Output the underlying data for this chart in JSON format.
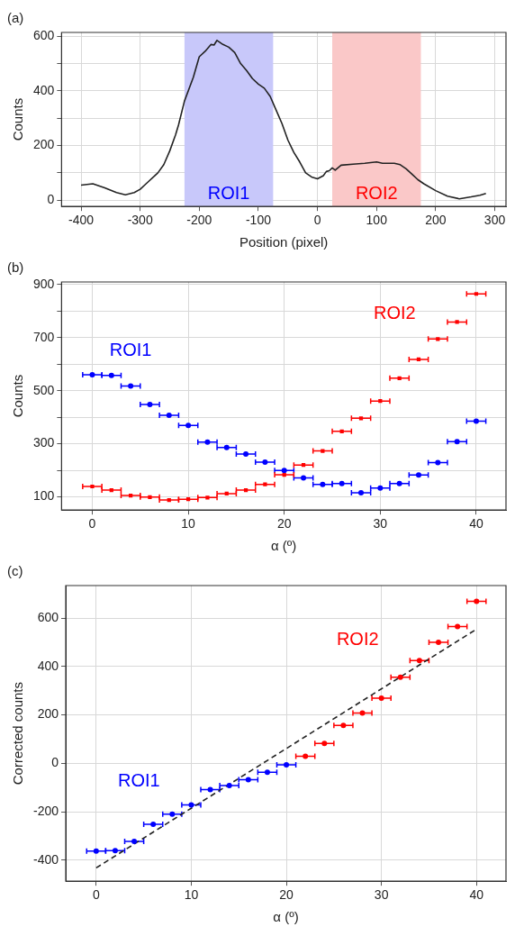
{
  "chart_data": [
    {
      "type": "line",
      "title": "(a)",
      "xlabel": "Position (pixel)",
      "ylabel": "Counts",
      "xlim": [
        -433,
        319
      ],
      "ylim": [
        -23,
        614
      ],
      "xticks": [
        -400,
        -300,
        -200,
        -100,
        0,
        100,
        200,
        300
      ],
      "yticks": [
        0,
        {
          "value": 100,
          "label": null
        },
        200,
        {
          "value": 300,
          "label": null
        },
        400,
        {
          "value": 500,
          "label": null
        },
        600
      ],
      "grid": true,
      "legend": false,
      "marker": "none",
      "bands": [
        {
          "axis": "x",
          "from": -225,
          "to": -75,
          "label": "ROI1",
          "color": "#c8c8fa"
        },
        {
          "axis": "x",
          "from": 25,
          "to": 175,
          "label": "ROI2",
          "color": "#fac8c8"
        }
      ],
      "series": [
        {
          "color": "#222222",
          "x": [
            -400,
            -380,
            -360,
            -340,
            -325,
            -310,
            -300,
            -290,
            -270,
            -260,
            -250,
            -240,
            -235,
            -225,
            -210,
            -200,
            -190,
            -180,
            -175,
            -170,
            -160,
            -150,
            -140,
            -130,
            -120,
            -110,
            -100,
            -90,
            -80,
            -70,
            -60,
            -50,
            -40,
            -30,
            -20,
            -10,
            0,
            10,
            15,
            20,
            25,
            30,
            40,
            60,
            80,
            100,
            110,
            130,
            140,
            150,
            160,
            170,
            180,
            200,
            220,
            240,
            260,
            275,
            285
          ],
          "values": [
            55,
            60,
            45,
            28,
            20,
            28,
            40,
            60,
            100,
            130,
            180,
            240,
            276,
            363,
            450,
            525,
            545,
            570,
            568,
            585,
            570,
            560,
            540,
            500,
            475,
            445,
            425,
            410,
            380,
            330,
            280,
            220,
            175,
            140,
            100,
            85,
            78,
            90,
            105,
            108,
            118,
            110,
            128,
            132,
            135,
            140,
            135,
            135,
            130,
            115,
            95,
            75,
            60,
            35,
            15,
            5,
            12,
            18,
            25
          ]
        }
      ]
    },
    {
      "type": "scatter",
      "title": "(b)",
      "xlabel": "α (º)",
      "ylabel": "Counts",
      "xlim": [
        -3.2,
        43.1
      ],
      "ylim": [
        50,
        910
      ],
      "xticks": [
        0,
        10,
        20,
        30,
        40
      ],
      "yticks": [
        100,
        {
          "value": 200,
          "label": null
        },
        300,
        {
          "value": 400,
          "label": null
        },
        500,
        {
          "value": 600,
          "label": null
        },
        700,
        {
          "value": 800,
          "label": null
        },
        900
      ],
      "grid": true,
      "legend": false,
      "x": [
        0,
        2,
        4,
        6,
        8,
        10,
        12,
        14,
        16,
        18,
        20,
        22,
        24,
        26,
        28,
        30,
        32,
        34,
        36,
        38,
        40
      ],
      "series": [
        {
          "name": "ROI1",
          "color": "#0000ff",
          "marker": "circle",
          "values": [
            560,
            558,
            518,
            448,
            407,
            369,
            306,
            286,
            261,
            231,
            199,
            171,
            147,
            150,
            115,
            133,
            150,
            182,
            229,
            308,
            385
          ],
          "xerrors": [
            1,
            1,
            1,
            1,
            1,
            1,
            1,
            1,
            1,
            1,
            1,
            1,
            1,
            1,
            1,
            1,
            1,
            1,
            1,
            1,
            1
          ]
        },
        {
          "name": "ROI2",
          "color": "#ff0000",
          "marker": "square",
          "values": [
            139,
            125,
            105,
            99,
            88,
            91,
            97,
            112,
            125,
            147,
            183,
            220,
            273,
            347,
            396,
            461,
            547,
            618,
            695,
            759,
            865
          ],
          "xerrors": [
            1,
            1,
            1,
            1,
            1,
            1,
            1,
            1,
            1,
            1,
            1,
            1,
            1,
            1,
            1,
            1,
            1,
            1,
            1,
            1,
            1
          ]
        }
      ]
    },
    {
      "type": "scatter",
      "title": "(c)",
      "xlabel": "α (º)",
      "ylabel": "Corrected counts",
      "xlim": [
        -3.2,
        43.1
      ],
      "ylim": [
        -487,
        734
      ],
      "xticks": [
        0,
        10,
        20,
        30,
        40
      ],
      "yticks": [
        -400,
        -200,
        0,
        200,
        400,
        600
      ],
      "grid": true,
      "legend": false,
      "series": [
        {
          "name": "ROI1",
          "color": "#0000ff",
          "marker": "circle",
          "x": [
            0,
            2,
            4,
            6,
            8,
            10,
            12,
            14,
            16,
            18,
            20
          ],
          "values": [
            -363,
            -361,
            -323,
            -252,
            -210,
            -172,
            -109,
            -92,
            -68,
            -37,
            -6
          ],
          "xerrors": [
            1,
            1,
            1,
            1,
            1,
            1,
            1,
            1,
            1,
            1,
            1
          ]
        },
        {
          "name": "ROI2",
          "color": "#ff0000",
          "marker": "circle",
          "x": [
            22,
            24,
            26,
            28,
            30,
            32,
            34,
            36,
            38,
            40
          ],
          "values": [
            29,
            82,
            156,
            208,
            269,
            355,
            424,
            500,
            565,
            669
          ],
          "xerrors": [
            1,
            1,
            1,
            1,
            1,
            1,
            1,
            1,
            1,
            1
          ]
        },
        {
          "type": "line",
          "color": "#222222",
          "marker": "none",
          "line_style": "dashed",
          "x": [
            0,
            40
          ],
          "values": [
            -432,
            554
          ]
        }
      ]
    }
  ]
}
